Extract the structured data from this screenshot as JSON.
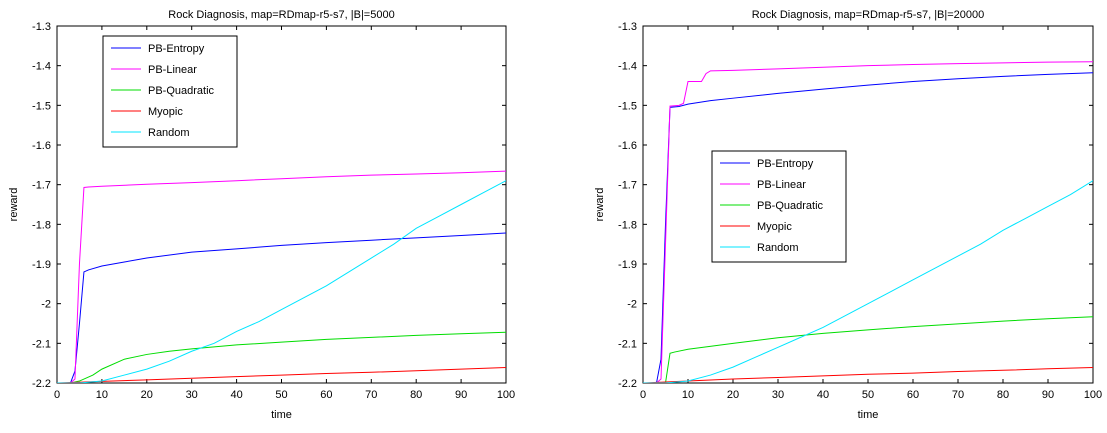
{
  "chart_data": [
    {
      "type": "line",
      "title": "Rock Diagnosis, map=RDmap-r5-s7, |B|=5000",
      "xlabel": "time",
      "ylabel": "reward",
      "xlim": [
        0,
        100
      ],
      "ylim": [
        -2.2,
        -1.3
      ],
      "xticks": [
        "0",
        "10",
        "20",
        "30",
        "40",
        "50",
        "60",
        "70",
        "80",
        "90",
        "100"
      ],
      "yticks": [
        "-1.3",
        "-1.4",
        "-1.5",
        "-1.6",
        "-1.7",
        "-1.8",
        "-1.9",
        "-2",
        "-2.1",
        "-2.2"
      ],
      "grid": false,
      "legend_position": "top-left",
      "series": [
        {
          "name": "PB-Entropy",
          "color": "#0000ff",
          "x": [
            3,
            4,
            5,
            6,
            7,
            10,
            15,
            20,
            30,
            40,
            50,
            60,
            70,
            80,
            90,
            100
          ],
          "y": [
            -2.2,
            -2.17,
            -2.05,
            -1.92,
            -1.915,
            -1.905,
            -1.895,
            -1.885,
            -1.87,
            -1.862,
            -1.853,
            -1.846,
            -1.84,
            -1.834,
            -1.828,
            -1.822
          ]
        },
        {
          "name": "PB-Linear",
          "color": "#ff00ff",
          "x": [
            3,
            4,
            5,
            6,
            7,
            10,
            20,
            30,
            40,
            50,
            60,
            70,
            80,
            90,
            100
          ],
          "y": [
            -2.2,
            -2.19,
            -1.9,
            -1.707,
            -1.706,
            -1.704,
            -1.699,
            -1.695,
            -1.69,
            -1.685,
            -1.68,
            -1.676,
            -1.673,
            -1.67,
            -1.666
          ]
        },
        {
          "name": "PB-Quadratic",
          "color": "#00dd00",
          "x": [
            0,
            3,
            5,
            8,
            10,
            15,
            20,
            25,
            30,
            40,
            50,
            60,
            70,
            80,
            90,
            100
          ],
          "y": [
            -2.2,
            -2.2,
            -2.195,
            -2.18,
            -2.165,
            -2.14,
            -2.128,
            -2.12,
            -2.114,
            -2.104,
            -2.097,
            -2.09,
            -2.085,
            -2.08,
            -2.076,
            -2.072
          ]
        },
        {
          "name": "Myopic",
          "color": "#ff0000",
          "x": [
            0,
            10,
            20,
            30,
            40,
            50,
            60,
            70,
            80,
            90,
            100
          ],
          "y": [
            -2.2,
            -2.196,
            -2.192,
            -2.188,
            -2.184,
            -2.18,
            -2.176,
            -2.173,
            -2.169,
            -2.165,
            -2.161
          ]
        },
        {
          "name": "Random",
          "color": "#00e5ff",
          "x": [
            0,
            5,
            10,
            15,
            20,
            25,
            30,
            35,
            40,
            45,
            50,
            55,
            60,
            65,
            70,
            75,
            80,
            85,
            90,
            95,
            100
          ],
          "y": [
            -2.2,
            -2.2,
            -2.195,
            -2.18,
            -2.165,
            -2.145,
            -2.12,
            -2.1,
            -2.07,
            -2.045,
            -2.015,
            -1.985,
            -1.955,
            -1.92,
            -1.885,
            -1.85,
            -1.81,
            -1.78,
            -1.75,
            -1.72,
            -1.69
          ]
        }
      ]
    },
    {
      "type": "line",
      "title": "Rock Diagnosis, map=RDmap-r5-s7, |B|=20000",
      "xlabel": "time",
      "ylabel": "reward",
      "xlim": [
        0,
        100
      ],
      "ylim": [
        -2.2,
        -1.3
      ],
      "xticks": [
        "0",
        "10",
        "20",
        "30",
        "40",
        "50",
        "60",
        "70",
        "80",
        "90",
        "100"
      ],
      "yticks": [
        "-1.3",
        "-1.4",
        "-1.5",
        "-1.6",
        "-1.7",
        "-1.8",
        "-1.9",
        "-2",
        "-2.1",
        "-2.2"
      ],
      "grid": false,
      "legend_position": "middle-left",
      "series": [
        {
          "name": "PB-Entropy",
          "color": "#0000ff",
          "x": [
            3,
            4,
            5,
            6,
            8,
            10,
            15,
            20,
            30,
            40,
            50,
            60,
            70,
            80,
            90,
            100
          ],
          "y": [
            -2.2,
            -2.14,
            -1.8,
            -1.505,
            -1.503,
            -1.497,
            -1.488,
            -1.482,
            -1.47,
            -1.459,
            -1.449,
            -1.44,
            -1.433,
            -1.427,
            -1.422,
            -1.418
          ]
        },
        {
          "name": "PB-Linear",
          "color": "#ff00ff",
          "x": [
            3,
            4,
            5,
            6,
            8,
            9,
            10,
            11,
            13,
            14,
            15,
            20,
            30,
            40,
            50,
            60,
            70,
            80,
            90,
            100
          ],
          "y": [
            -2.2,
            -2.19,
            -1.85,
            -1.502,
            -1.5,
            -1.495,
            -1.44,
            -1.44,
            -1.44,
            -1.42,
            -1.413,
            -1.412,
            -1.408,
            -1.404,
            -1.4,
            -1.397,
            -1.395,
            -1.393,
            -1.391,
            -1.39
          ]
        },
        {
          "name": "PB-Quadratic",
          "color": "#00dd00",
          "x": [
            0,
            5,
            6,
            7,
            10,
            20,
            30,
            40,
            50,
            60,
            70,
            80,
            90,
            100
          ],
          "y": [
            -2.2,
            -2.2,
            -2.125,
            -2.122,
            -2.115,
            -2.1,
            -2.086,
            -2.075,
            -2.066,
            -2.058,
            -2.051,
            -2.044,
            -2.038,
            -2.033
          ]
        },
        {
          "name": "Myopic",
          "color": "#ff0000",
          "x": [
            0,
            10,
            20,
            30,
            40,
            50,
            60,
            70,
            80,
            90,
            100
          ],
          "y": [
            -2.2,
            -2.195,
            -2.19,
            -2.186,
            -2.182,
            -2.178,
            -2.175,
            -2.171,
            -2.168,
            -2.164,
            -2.161
          ]
        },
        {
          "name": "Random",
          "color": "#00e5ff",
          "x": [
            0,
            5,
            10,
            15,
            20,
            25,
            30,
            35,
            40,
            45,
            50,
            55,
            60,
            65,
            70,
            75,
            80,
            85,
            90,
            95,
            100
          ],
          "y": [
            -2.2,
            -2.2,
            -2.195,
            -2.18,
            -2.16,
            -2.135,
            -2.11,
            -2.085,
            -2.06,
            -2.03,
            -2.0,
            -1.97,
            -1.94,
            -1.91,
            -1.88,
            -1.85,
            -1.815,
            -1.785,
            -1.755,
            -1.725,
            -1.69
          ]
        }
      ]
    }
  ]
}
